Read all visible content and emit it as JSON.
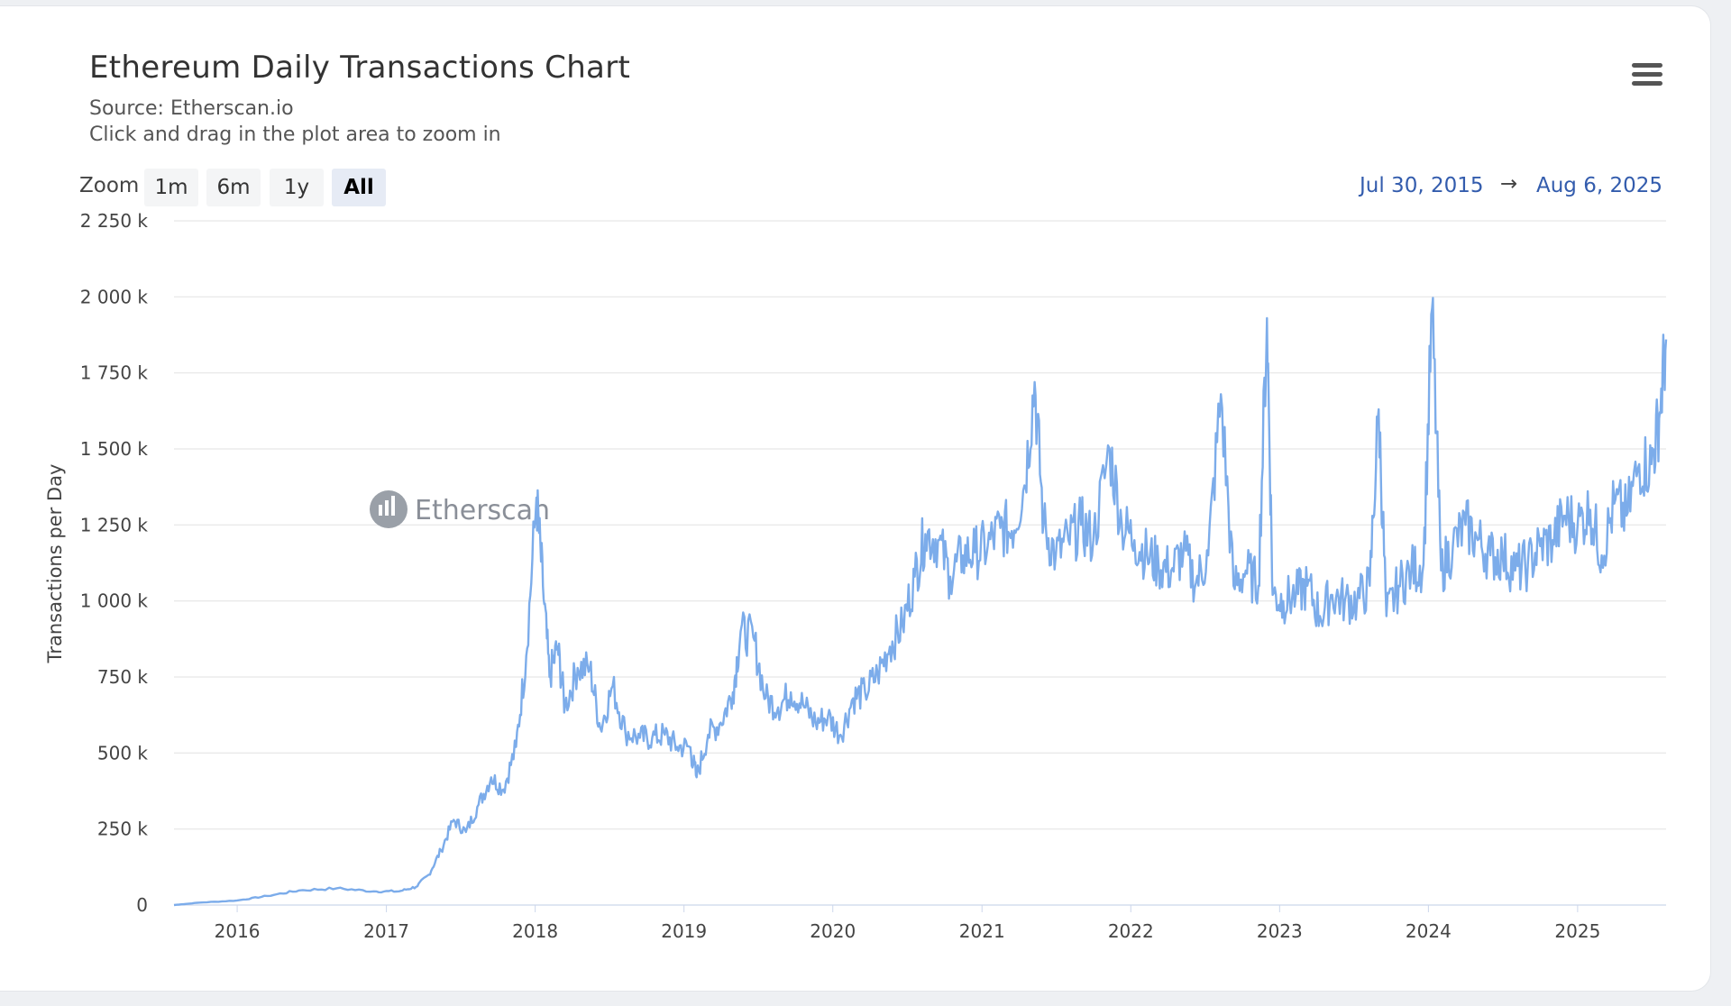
{
  "header": {
    "title": "Ethereum Daily Transactions Chart",
    "source": "Source: Etherscan.io",
    "hint": "Click and drag in the plot area to zoom in",
    "menu_icon": "hamburger-menu-icon"
  },
  "zoom": {
    "label": "Zoom",
    "buttons": [
      "1m",
      "6m",
      "1y",
      "All"
    ],
    "active": "All"
  },
  "range": {
    "from": "Jul 30, 2015",
    "arrow": "→",
    "to": "Aug 6, 2025"
  },
  "watermark": {
    "text": "Etherscan"
  },
  "colors": {
    "series": "#7cacea",
    "grid": "#e6e6e6",
    "range_text": "#335cad"
  },
  "chart_data": {
    "type": "line",
    "title": "Ethereum Daily Transactions Chart",
    "xlabel": "",
    "ylabel": "Transactions per Day",
    "xlim": [
      "2015-07-30",
      "2025-08-06"
    ],
    "ylim": [
      0,
      2250000
    ],
    "y_ticks": [
      0,
      250000,
      500000,
      750000,
      1000000,
      1250000,
      1500000,
      1750000,
      2000000,
      2250000
    ],
    "y_tick_labels": [
      "0",
      "250 k",
      "500 k",
      "750 k",
      "1 000 k",
      "1 250 k",
      "1 500 k",
      "1 750 k",
      "2 000 k",
      "2 250 k"
    ],
    "x_tick_labels": [
      "2016",
      "2017",
      "2018",
      "2019",
      "2020",
      "2021",
      "2022",
      "2023",
      "2024",
      "2025"
    ],
    "grid": true,
    "legend": "none",
    "series": [
      {
        "values_units": "transactions per day",
        "points": [
          [
            "2015-07-30",
            0
          ],
          [
            "2015-10-01",
            8000
          ],
          [
            "2016-01-01",
            15000
          ],
          [
            "2016-03-15",
            30000
          ],
          [
            "2016-06-01",
            48000
          ],
          [
            "2016-09-01",
            55000
          ],
          [
            "2016-12-01",
            45000
          ],
          [
            "2017-02-01",
            45000
          ],
          [
            "2017-03-15",
            60000
          ],
          [
            "2017-04-15",
            100000
          ],
          [
            "2017-05-15",
            180000
          ],
          [
            "2017-06-15",
            280000
          ],
          [
            "2017-07-15",
            240000
          ],
          [
            "2017-08-15",
            330000
          ],
          [
            "2017-09-15",
            420000
          ],
          [
            "2017-10-15",
            380000
          ],
          [
            "2017-11-15",
            520000
          ],
          [
            "2017-12-10",
            820000
          ],
          [
            "2018-01-04",
            1340000
          ],
          [
            "2018-01-20",
            1050000
          ],
          [
            "2018-02-05",
            750000
          ],
          [
            "2018-02-25",
            850000
          ],
          [
            "2018-03-15",
            650000
          ],
          [
            "2018-04-15",
            780000
          ],
          [
            "2018-05-15",
            780000
          ],
          [
            "2018-06-10",
            580000
          ],
          [
            "2018-07-10",
            720000
          ],
          [
            "2018-08-10",
            570000
          ],
          [
            "2018-09-15",
            550000
          ],
          [
            "2018-10-15",
            550000
          ],
          [
            "2018-11-15",
            560000
          ],
          [
            "2018-12-15",
            520000
          ],
          [
            "2019-01-15",
            520000
          ],
          [
            "2019-02-01",
            420000
          ],
          [
            "2019-03-01",
            560000
          ],
          [
            "2019-04-01",
            600000
          ],
          [
            "2019-05-01",
            700000
          ],
          [
            "2019-05-20",
            900000
          ],
          [
            "2019-06-20",
            880000
          ],
          [
            "2019-07-20",
            680000
          ],
          [
            "2019-08-20",
            650000
          ],
          [
            "2019-09-20",
            700000
          ],
          [
            "2019-10-20",
            660000
          ],
          [
            "2019-11-20",
            600000
          ],
          [
            "2019-12-20",
            620000
          ],
          [
            "2020-01-20",
            560000
          ],
          [
            "2020-02-20",
            680000
          ],
          [
            "2020-03-20",
            700000
          ],
          [
            "2020-04-20",
            760000
          ],
          [
            "2020-05-20",
            850000
          ],
          [
            "2020-06-20",
            920000
          ],
          [
            "2020-07-20",
            1080000
          ],
          [
            "2020-08-15",
            1220000
          ],
          [
            "2020-09-15",
            1200000
          ],
          [
            "2020-10-15",
            1080000
          ],
          [
            "2020-11-15",
            1150000
          ],
          [
            "2020-12-15",
            1160000
          ],
          [
            "2021-01-15",
            1180000
          ],
          [
            "2021-02-15",
            1240000
          ],
          [
            "2021-03-15",
            1230000
          ],
          [
            "2021-04-15",
            1380000
          ],
          [
            "2021-05-10",
            1720000
          ],
          [
            "2021-06-01",
            1250000
          ],
          [
            "2021-07-01",
            1150000
          ],
          [
            "2021-08-01",
            1200000
          ],
          [
            "2021-09-01",
            1250000
          ],
          [
            "2021-10-01",
            1200000
          ],
          [
            "2021-11-10",
            1500000
          ],
          [
            "2021-12-10",
            1250000
          ],
          [
            "2022-01-10",
            1200000
          ],
          [
            "2022-02-10",
            1150000
          ],
          [
            "2022-03-10",
            1120000
          ],
          [
            "2022-04-10",
            1100000
          ],
          [
            "2022-05-10",
            1160000
          ],
          [
            "2022-06-10",
            1060000
          ],
          [
            "2022-07-10",
            1150000
          ],
          [
            "2022-08-10",
            1680000
          ],
          [
            "2022-09-10",
            1050000
          ],
          [
            "2022-10-10",
            1100000
          ],
          [
            "2022-11-10",
            1050000
          ],
          [
            "2022-12-01",
            1930000
          ],
          [
            "2022-12-15",
            1020000
          ],
          [
            "2023-01-10",
            1000000
          ],
          [
            "2023-02-10",
            1020000
          ],
          [
            "2023-03-10",
            1050000
          ],
          [
            "2023-04-10",
            950000
          ],
          [
            "2023-05-10",
            1020000
          ],
          [
            "2023-06-10",
            1000000
          ],
          [
            "2023-07-10",
            1000000
          ],
          [
            "2023-08-10",
            1050000
          ],
          [
            "2023-09-01",
            1630000
          ],
          [
            "2023-09-20",
            950000
          ],
          [
            "2023-10-20",
            1050000
          ],
          [
            "2023-11-20",
            1100000
          ],
          [
            "2023-12-20",
            1120000
          ],
          [
            "2024-01-10",
            1960000
          ],
          [
            "2024-02-01",
            1100000
          ],
          [
            "2024-03-01",
            1180000
          ],
          [
            "2024-04-01",
            1250000
          ],
          [
            "2024-05-01",
            1200000
          ],
          [
            "2024-06-01",
            1150000
          ],
          [
            "2024-07-01",
            1150000
          ],
          [
            "2024-08-01",
            1100000
          ],
          [
            "2024-09-01",
            1120000
          ],
          [
            "2024-10-01",
            1180000
          ],
          [
            "2024-11-01",
            1200000
          ],
          [
            "2024-12-01",
            1280000
          ],
          [
            "2025-01-01",
            1250000
          ],
          [
            "2025-02-01",
            1300000
          ],
          [
            "2025-03-01",
            1150000
          ],
          [
            "2025-04-01",
            1320000
          ],
          [
            "2025-05-01",
            1280000
          ],
          [
            "2025-06-01",
            1450000
          ],
          [
            "2025-07-01",
            1450000
          ],
          [
            "2025-07-20",
            1600000
          ],
          [
            "2025-08-06",
            1860000
          ]
        ]
      }
    ]
  }
}
